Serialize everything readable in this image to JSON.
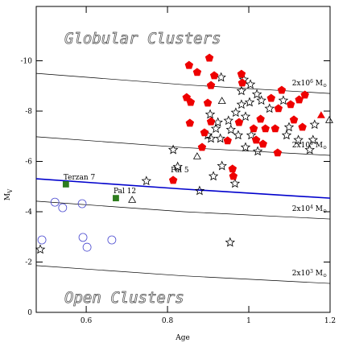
{
  "chart_data": {
    "type": "scatter",
    "xlabel": "Age",
    "ylabel": "M",
    "ylabel_sub": "V",
    "annotations": [
      "Globular Clusters",
      "Open Clusters"
    ],
    "xlim": [
      0.477,
      1.2
    ],
    "ylim": [
      0,
      -12.16
    ],
    "xticks": [
      0.6,
      0.8,
      1,
      1.2
    ],
    "yticks": [
      0,
      -2,
      -4,
      -6,
      -8,
      -10
    ],
    "lines": [
      {
        "color": "#000000",
        "x": [
          0.477,
          0.84,
          1.2
        ],
        "values": [
          -9.5,
          -9.05,
          -8.7
        ],
        "label": {
          "base": "2x10",
          "exp": "6",
          "unit": " M",
          "sub": "⊙"
        }
      },
      {
        "color": "#000000",
        "x": [
          0.477,
          0.84,
          1.2
        ],
        "values": [
          -6.98,
          -6.55,
          -6.24
        ],
        "label": {
          "base": "2x10",
          "exp": "5",
          "unit": " M",
          "sub": "⊙"
        }
      },
      {
        "color": "#000000",
        "x": [
          0.477,
          0.84,
          1.2
        ],
        "values": [
          -4.42,
          -4.0,
          -3.71
        ],
        "label": {
          "base": "2x10",
          "exp": "4",
          "unit": " M",
          "sub": "⊙"
        }
      },
      {
        "color": "#000000",
        "x": [
          0.477,
          0.84,
          1.2
        ],
        "values": [
          -1.86,
          -1.45,
          -1.15
        ],
        "label": {
          "base": "2x10",
          "exp": "3",
          "unit": " M",
          "sub": "⊙"
        }
      },
      {
        "color": "#0000cc",
        "x": [
          0.477,
          0.84,
          1.2
        ],
        "values": [
          -5.31,
          -4.9,
          -4.54
        ]
      }
    ],
    "series": [
      {
        "marker": "circle",
        "color": "#4a4ad0",
        "filled": false,
        "x": [
          0.491,
          0.523,
          0.542,
          0.59,
          0.592,
          0.602,
          0.663
        ],
        "values": [
          -2.88,
          -4.38,
          -4.16,
          -4.32,
          -2.98,
          -2.59,
          -2.88
        ]
      },
      {
        "marker": "star",
        "color": "#000000",
        "filled": false,
        "x": [
          0.932,
          0.988,
          1.004,
          1.02,
          0.982,
          1.002,
          1.031,
          1.051,
          0.982,
          0.968,
          0.992,
          0.95,
          0.924,
          0.905,
          0.919,
          0.899,
          0.93,
          0.956,
          0.974,
          1.006,
          0.992,
          1.022,
          1.093,
          1.099,
          1.122,
          1.15,
          1.158,
          1.162,
          1.085,
          0.907,
          0.814,
          0.748,
          0.879,
          0.825,
          0.934,
          0.913,
          0.966,
          0.954,
          0.487
        ],
        "values": [
          -9.34,
          -9.25,
          -9.06,
          -8.67,
          -8.8,
          -8.35,
          -8.42,
          -8.1,
          -8.26,
          -7.94,
          -7.78,
          -7.62,
          -7.55,
          -7.87,
          -7.3,
          -7.04,
          -6.91,
          -7.26,
          -7.04,
          -7.04,
          -6.56,
          -6.4,
          -7.04,
          -7.36,
          -6.85,
          -6.46,
          -6.85,
          -7.46,
          -8.42,
          -6.91,
          -6.46,
          -5.22,
          -4.83,
          -5.79,
          -5.82,
          -5.41,
          -5.12,
          -2.78,
          -2.5
        ]
      },
      {
        "marker": "pentagon",
        "color": "#ee0000",
        "filled": true,
        "x": [
          0.853,
          0.873,
          0.903,
          0.915,
          0.847,
          0.857,
          0.907,
          0.899,
          0.855,
          0.891,
          0.885,
          0.907,
          0.982,
          0.984,
          0.976,
          0.948,
          1.012,
          1.029,
          1.041,
          1.035,
          1.055,
          1.081,
          1.103,
          1.111,
          1.124,
          1.138,
          1.073,
          1.065,
          1.018,
          1.071,
          0.96,
          0.962,
          1.132
        ],
        "values": [
          -9.82,
          -9.54,
          -10.11,
          -9.41,
          -8.54,
          -8.35,
          -9.02,
          -8.32,
          -7.52,
          -7.14,
          -6.56,
          -7.58,
          -9.47,
          -9.12,
          -7.55,
          -6.82,
          -7.3,
          -7.68,
          -7.3,
          -6.69,
          -8.51,
          -8.83,
          -8.26,
          -7.65,
          -8.45,
          -8.64,
          -8.1,
          -7.3,
          -6.85,
          -6.34,
          -5.7,
          -5.41,
          -7.36
        ]
      },
      {
        "marker": "pentagon",
        "color": "#ee0000",
        "filled": true,
        "x": [
          0.814
        ],
        "values": [
          -5.25
        ],
        "labels": [
          "Pal 5"
        ]
      },
      {
        "marker": "triangle",
        "color": "#000000",
        "filled": false,
        "x": [
          0.713,
          0.873,
          0.934,
          1.198
        ],
        "values": [
          -4.45,
          -6.18,
          -8.38,
          -7.62
        ]
      },
      {
        "marker": "triangle",
        "color": "#ee0000",
        "filled": true,
        "x": [
          1.178
        ],
        "values": [
          -7.81
        ]
      },
      {
        "marker": "square",
        "color": "#2e7d1e",
        "filled": true,
        "x": [
          0.55,
          0.673
        ],
        "values": [
          -5.09,
          -4.54
        ],
        "labels": [
          "Terzan 7",
          "Pal 12"
        ]
      }
    ]
  }
}
